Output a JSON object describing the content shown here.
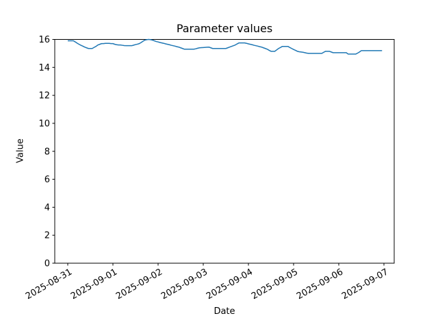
{
  "figure": {
    "background_color": "#ffffff",
    "text_color": "#000000",
    "spine_color": "#000000"
  },
  "chart_data": {
    "type": "line",
    "title": "Parameter values",
    "xlabel": "Date",
    "ylabel": "Value",
    "ylim": [
      0,
      16
    ],
    "yticks": [
      0,
      2,
      4,
      6,
      8,
      10,
      12,
      14,
      16
    ],
    "xtick_labels": [
      "2025-08-31",
      "2025-09-01",
      "2025-09-02",
      "2025-09-03",
      "2025-09-04",
      "2025-09-05",
      "2025-09-06",
      "2025-09-07"
    ],
    "grid": false,
    "legend": false,
    "line_color": "#1f77b4",
    "series": [
      {
        "x_start": "2025-08-31 00:00",
        "x_interval_hours": 1,
        "values": [
          15.9,
          15.9,
          15.9,
          15.9,
          15.82,
          15.73,
          15.65,
          15.58,
          15.52,
          15.45,
          15.4,
          15.35,
          15.35,
          15.35,
          15.43,
          15.5,
          15.6,
          15.65,
          15.7,
          15.7,
          15.72,
          15.72,
          15.72,
          15.7,
          15.7,
          15.65,
          15.62,
          15.6,
          15.6,
          15.58,
          15.56,
          15.55,
          15.55,
          15.55,
          15.55,
          15.59,
          15.63,
          15.66,
          15.7,
          15.78,
          15.87,
          15.95,
          15.98,
          16.0,
          15.98,
          15.95,
          15.9,
          15.85,
          15.82,
          15.78,
          15.75,
          15.72,
          15.68,
          15.65,
          15.62,
          15.58,
          15.55,
          15.52,
          15.48,
          15.45,
          15.4,
          15.35,
          15.3,
          15.3,
          15.3,
          15.3,
          15.3,
          15.3,
          15.33,
          15.37,
          15.4,
          15.41,
          15.42,
          15.43,
          15.44,
          15.45,
          15.4,
          15.35,
          15.35,
          15.35,
          15.35,
          15.35,
          15.35,
          15.35,
          15.35,
          15.4,
          15.45,
          15.5,
          15.55,
          15.6,
          15.68,
          15.75,
          15.75,
          15.75,
          15.75,
          15.72,
          15.68,
          15.65,
          15.62,
          15.58,
          15.55,
          15.52,
          15.48,
          15.45,
          15.4,
          15.35,
          15.3,
          15.22,
          15.15,
          15.15,
          15.15,
          15.25,
          15.35,
          15.42,
          15.5,
          15.5,
          15.5,
          15.5,
          15.42,
          15.35,
          15.28,
          15.22,
          15.15,
          15.12,
          15.1,
          15.08,
          15.05,
          15.02,
          15.0,
          15.0,
          15.0,
          15.0,
          15.0,
          15.0,
          15.0,
          15.0,
          15.08,
          15.15,
          15.15,
          15.15,
          15.1,
          15.05,
          15.05,
          15.05,
          15.05,
          15.05,
          15.05,
          15.05,
          15.05,
          14.95,
          14.95,
          14.95,
          14.95,
          14.95,
          15.02,
          15.1,
          15.2,
          15.2,
          15.2,
          15.2,
          15.2,
          15.2,
          15.2,
          15.2,
          15.2,
          15.2,
          15.2,
          15.2
        ]
      }
    ]
  }
}
